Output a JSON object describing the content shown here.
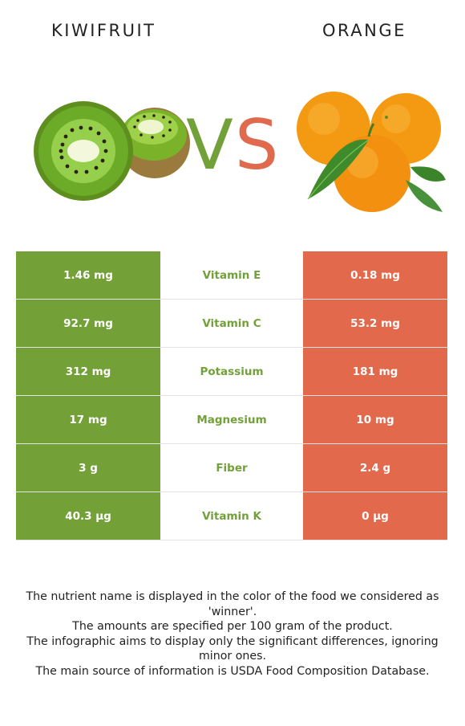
{
  "header": {
    "left_food": "KIWIFRUIT",
    "right_food": "ORANGE",
    "vs_v": "V",
    "vs_s": "S"
  },
  "colors": {
    "kiwi": "#73a037",
    "orange": "#e2694c"
  },
  "rows": [
    {
      "kiwi": "1.46 mg",
      "nutrient": "Vitamin E",
      "orange": "0.18 mg"
    },
    {
      "kiwi": "92.7 mg",
      "nutrient": "Vitamin C",
      "orange": "53.2 mg"
    },
    {
      "kiwi": "312 mg",
      "nutrient": "Potassium",
      "orange": "181 mg"
    },
    {
      "kiwi": "17 mg",
      "nutrient": "Magnesium",
      "orange": "10 mg"
    },
    {
      "kiwi": "3 g",
      "nutrient": "Fiber",
      "orange": "2.4 g"
    },
    {
      "kiwi": "40.3 µg",
      "nutrient": "Vitamin K",
      "orange": "0 µg"
    }
  ],
  "notes": [
    "The nutrient name is displayed in the color of the food we considered as 'winner'.",
    "The amounts are specified per 100 gram of the product.",
    "The infographic aims to display only the significant differences, ignoring minor ones.",
    "The main source of information is USDA Food Composition Database."
  ],
  "images": {
    "left": "kiwifruit-image",
    "right": "orange-image"
  }
}
